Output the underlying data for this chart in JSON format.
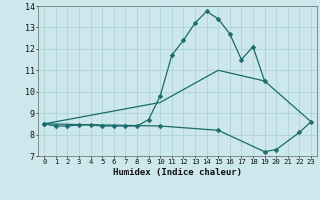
{
  "xlabel": "Humidex (Indice chaleur)",
  "background_color": "#cce8ec",
  "grid_color": "#aacdd4",
  "line_color": "#1a6b6b",
  "xlim": [
    -0.5,
    23.5
  ],
  "ylim": [
    7,
    14
  ],
  "yticks": [
    7,
    8,
    9,
    10,
    11,
    12,
    13,
    14
  ],
  "xticks": [
    0,
    1,
    2,
    3,
    4,
    5,
    6,
    7,
    8,
    9,
    10,
    11,
    12,
    13,
    14,
    15,
    16,
    17,
    18,
    19,
    20,
    21,
    22,
    23
  ],
  "line1_x": [
    0,
    1,
    2,
    3,
    4,
    5,
    6,
    7,
    8,
    9,
    10,
    11,
    12,
    13,
    14,
    15,
    16,
    17,
    18,
    19
  ],
  "line1_y": [
    8.5,
    8.4,
    8.4,
    8.45,
    8.45,
    8.4,
    8.4,
    8.4,
    8.4,
    8.7,
    9.8,
    11.7,
    12.4,
    13.2,
    13.75,
    13.4,
    12.7,
    11.5,
    12.1,
    10.5
  ],
  "line2_x": [
    0,
    10,
    15,
    19,
    23
  ],
  "line2_y": [
    8.5,
    9.5,
    11.0,
    10.5,
    8.6
  ],
  "line3_x": [
    0,
    10,
    15,
    19,
    20,
    22,
    23
  ],
  "line3_y": [
    8.5,
    8.4,
    8.2,
    7.2,
    7.3,
    8.1,
    8.6
  ]
}
